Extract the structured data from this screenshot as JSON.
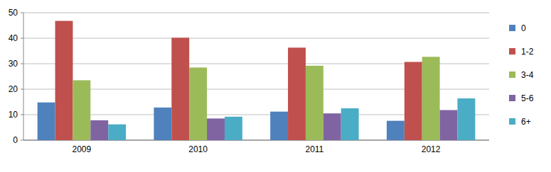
{
  "chart_data": {
    "type": "bar",
    "categories": [
      "2009",
      "2010",
      "2011",
      "2012"
    ],
    "series": [
      {
        "name": "0",
        "color": "#4f81bd",
        "values": [
          14.8,
          12.8,
          11.2,
          7.6
        ]
      },
      {
        "name": "1-2",
        "color": "#c0504d",
        "values": [
          46.8,
          40.2,
          36.3,
          30.7
        ]
      },
      {
        "name": "3-4",
        "color": "#9bbb59",
        "values": [
          23.5,
          28.5,
          29.2,
          32.7
        ]
      },
      {
        "name": "5-6",
        "color": "#8064a2",
        "values": [
          7.8,
          8.5,
          10.5,
          11.8
        ]
      },
      {
        "name": "6+",
        "color": "#4bacc6",
        "values": [
          6.2,
          9.2,
          12.5,
          16.4
        ]
      }
    ],
    "ylim": [
      0,
      50
    ],
    "yticks": [
      0,
      10,
      20,
      30,
      40,
      50
    ],
    "grid": true,
    "legend": "right"
  }
}
